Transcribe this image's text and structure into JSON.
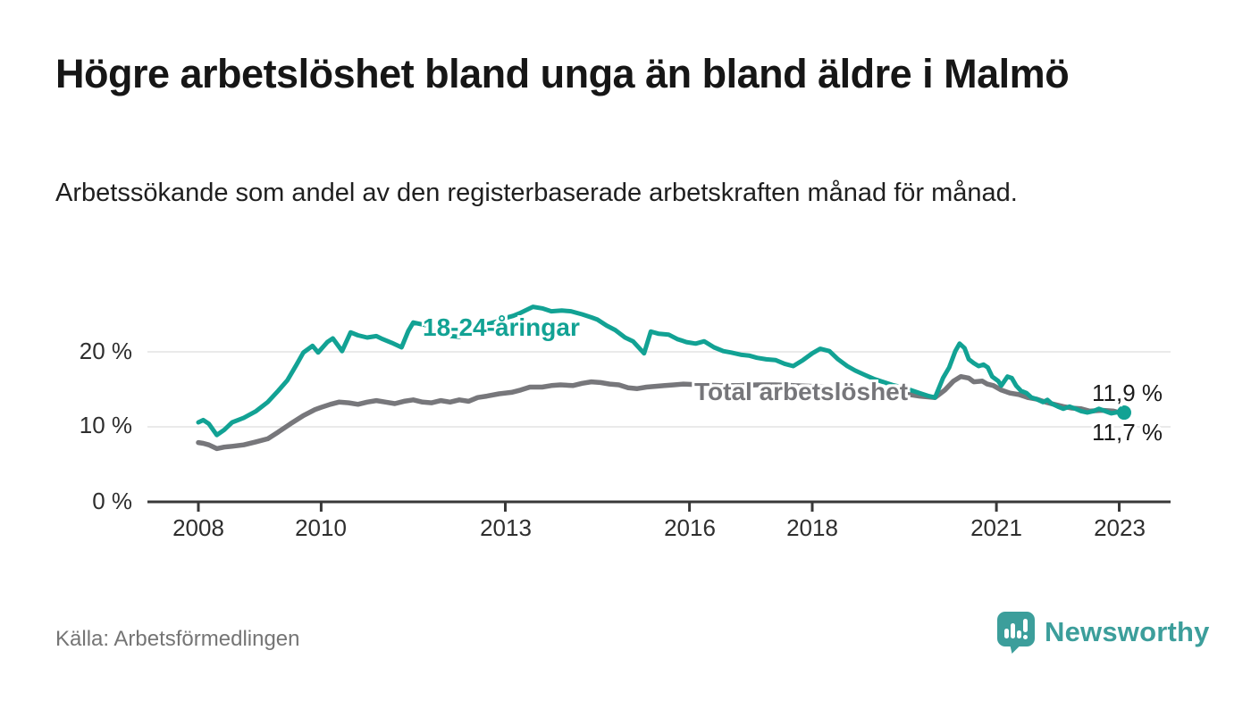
{
  "header": {
    "title": "Högre arbetslöshet bland unga än bland äldre i Malmö",
    "subtitle": "Arbetssökande som andel av den registerbaserade arbetskraften månad för månad."
  },
  "footer": {
    "source": "Källa: Arbetsförmedlingen",
    "logo_text": "Newsworthy"
  },
  "colors": {
    "youth_line": "#12a294",
    "total_line": "#77777b",
    "gridline": "#e3e3e3",
    "axis": "#383838",
    "logo": "#3c9e9b"
  },
  "chart_data": {
    "type": "line",
    "title": "Högre arbetslöshet bland unga än bland äldre i Malmö",
    "subtitle": "Arbetssökande som andel av den registerbaserade arbetskraften månad för månad.",
    "source": "Källa: Arbetsförmedlingen",
    "legend_position": "inline-labels-on-lines",
    "x_axis": {
      "min": 2007.17,
      "max": 2023.45,
      "ticks": [
        2008,
        2010,
        2013,
        2016,
        2018,
        2021,
        2023
      ],
      "tick_labels": [
        "2008",
        "2010",
        "2013",
        "2016",
        "2018",
        "2021",
        "2023"
      ]
    },
    "y_axis": {
      "min": 0,
      "max": 26.5,
      "unit": "%",
      "grid": true,
      "ticks": [
        0,
        10,
        20
      ],
      "tick_labels": [
        "0 %",
        "10 %",
        "20 %"
      ]
    },
    "series": [
      {
        "name": "18-24-åringar",
        "color": "#12a294",
        "end_label": "11,9 %",
        "end_value": 11.9,
        "end_dot": true,
        "points": [
          [
            2008.0,
            10.6
          ],
          [
            2008.08,
            10.9
          ],
          [
            2008.17,
            10.4
          ],
          [
            2008.3,
            8.9
          ],
          [
            2008.42,
            9.6
          ],
          [
            2008.55,
            10.6
          ],
          [
            2008.74,
            11.2
          ],
          [
            2008.94,
            12.1
          ],
          [
            2009.13,
            13.3
          ],
          [
            2009.3,
            14.8
          ],
          [
            2009.45,
            16.2
          ],
          [
            2009.6,
            18.3
          ],
          [
            2009.71,
            19.9
          ],
          [
            2009.86,
            20.8
          ],
          [
            2009.95,
            19.9
          ],
          [
            2010.1,
            21.3
          ],
          [
            2010.19,
            21.8
          ],
          [
            2010.34,
            20.1
          ],
          [
            2010.48,
            22.6
          ],
          [
            2010.6,
            22.2
          ],
          [
            2010.75,
            21.9
          ],
          [
            2010.9,
            22.1
          ],
          [
            2011.0,
            21.7
          ],
          [
            2011.15,
            21.2
          ],
          [
            2011.31,
            20.6
          ],
          [
            2011.42,
            22.8
          ],
          [
            2011.5,
            23.9
          ],
          [
            2011.62,
            23.7
          ],
          [
            2011.74,
            23.5
          ],
          [
            2011.88,
            22.8
          ],
          [
            2012.0,
            22.3
          ],
          [
            2012.12,
            22.1
          ],
          [
            2012.25,
            22.0
          ],
          [
            2012.37,
            22.4
          ],
          [
            2012.5,
            23.0
          ],
          [
            2012.63,
            23.4
          ],
          [
            2012.75,
            23.8
          ],
          [
            2012.88,
            24.1
          ],
          [
            2013.0,
            24.5
          ],
          [
            2013.13,
            24.8
          ],
          [
            2013.25,
            25.2
          ],
          [
            2013.45,
            26.0
          ],
          [
            2013.6,
            25.8
          ],
          [
            2013.75,
            25.4
          ],
          [
            2013.92,
            25.5
          ],
          [
            2014.07,
            25.4
          ],
          [
            2014.25,
            25.0
          ],
          [
            2014.4,
            24.6
          ],
          [
            2014.5,
            24.3
          ],
          [
            2014.65,
            23.5
          ],
          [
            2014.79,
            22.9
          ],
          [
            2014.95,
            21.9
          ],
          [
            2015.08,
            21.4
          ],
          [
            2015.26,
            19.8
          ],
          [
            2015.37,
            22.7
          ],
          [
            2015.5,
            22.4
          ],
          [
            2015.66,
            22.3
          ],
          [
            2015.8,
            21.7
          ],
          [
            2015.95,
            21.3
          ],
          [
            2016.1,
            21.1
          ],
          [
            2016.24,
            21.4
          ],
          [
            2016.4,
            20.6
          ],
          [
            2016.55,
            20.1
          ],
          [
            2016.68,
            19.9
          ],
          [
            2016.85,
            19.6
          ],
          [
            2016.97,
            19.5
          ],
          [
            2017.1,
            19.2
          ],
          [
            2017.25,
            19.0
          ],
          [
            2017.4,
            18.9
          ],
          [
            2017.55,
            18.4
          ],
          [
            2017.69,
            18.1
          ],
          [
            2017.85,
            18.9
          ],
          [
            2018.0,
            19.8
          ],
          [
            2018.13,
            20.4
          ],
          [
            2018.28,
            20.1
          ],
          [
            2018.42,
            19.0
          ],
          [
            2018.57,
            18.1
          ],
          [
            2018.7,
            17.5
          ],
          [
            2018.86,
            16.9
          ],
          [
            2019.0,
            16.4
          ],
          [
            2019.15,
            16.0
          ],
          [
            2019.3,
            15.6
          ],
          [
            2019.45,
            15.3
          ],
          [
            2019.6,
            14.9
          ],
          [
            2019.75,
            14.5
          ],
          [
            2019.9,
            14.1
          ],
          [
            2020.0,
            13.9
          ],
          [
            2020.13,
            16.5
          ],
          [
            2020.23,
            17.9
          ],
          [
            2020.33,
            20.1
          ],
          [
            2020.4,
            21.1
          ],
          [
            2020.48,
            20.5
          ],
          [
            2020.55,
            19.0
          ],
          [
            2020.63,
            18.5
          ],
          [
            2020.71,
            18.1
          ],
          [
            2020.79,
            18.3
          ],
          [
            2020.86,
            17.9
          ],
          [
            2020.93,
            16.7
          ],
          [
            2021.03,
            16.1
          ],
          [
            2021.08,
            15.5
          ],
          [
            2021.18,
            16.7
          ],
          [
            2021.25,
            16.5
          ],
          [
            2021.32,
            15.5
          ],
          [
            2021.4,
            14.8
          ],
          [
            2021.49,
            14.5
          ],
          [
            2021.57,
            13.9
          ],
          [
            2021.65,
            13.7
          ],
          [
            2021.76,
            13.3
          ],
          [
            2021.83,
            13.6
          ],
          [
            2021.9,
            13.1
          ],
          [
            2022.0,
            12.7
          ],
          [
            2022.09,
            12.4
          ],
          [
            2022.19,
            12.7
          ],
          [
            2022.29,
            12.4
          ],
          [
            2022.38,
            12.1
          ],
          [
            2022.48,
            11.9
          ],
          [
            2022.58,
            12.1
          ],
          [
            2022.67,
            12.4
          ],
          [
            2022.77,
            12.1
          ],
          [
            2022.87,
            11.8
          ],
          [
            2023.0,
            12.0
          ],
          [
            2023.08,
            11.9
          ]
        ]
      },
      {
        "name": "Total arbetslöshet",
        "color": "#77777b",
        "end_label": "11,7 %",
        "end_value": 11.7,
        "end_dot": false,
        "points": [
          [
            2008.0,
            7.9
          ],
          [
            2008.08,
            7.8
          ],
          [
            2008.17,
            7.6
          ],
          [
            2008.3,
            7.1
          ],
          [
            2008.42,
            7.3
          ],
          [
            2008.55,
            7.4
          ],
          [
            2008.74,
            7.6
          ],
          [
            2008.94,
            8.0
          ],
          [
            2009.13,
            8.4
          ],
          [
            2009.3,
            9.3
          ],
          [
            2009.5,
            10.4
          ],
          [
            2009.71,
            11.5
          ],
          [
            2009.9,
            12.3
          ],
          [
            2010.0,
            12.6
          ],
          [
            2010.15,
            13.0
          ],
          [
            2010.29,
            13.3
          ],
          [
            2010.45,
            13.2
          ],
          [
            2010.6,
            13.0
          ],
          [
            2010.75,
            13.3
          ],
          [
            2010.9,
            13.5
          ],
          [
            2011.05,
            13.3
          ],
          [
            2011.2,
            13.1
          ],
          [
            2011.35,
            13.4
          ],
          [
            2011.5,
            13.6
          ],
          [
            2011.65,
            13.3
          ],
          [
            2011.8,
            13.2
          ],
          [
            2011.95,
            13.5
          ],
          [
            2012.1,
            13.3
          ],
          [
            2012.25,
            13.6
          ],
          [
            2012.4,
            13.4
          ],
          [
            2012.55,
            13.9
          ],
          [
            2012.7,
            14.1
          ],
          [
            2012.9,
            14.4
          ],
          [
            2013.1,
            14.6
          ],
          [
            2013.25,
            14.9
          ],
          [
            2013.4,
            15.3
          ],
          [
            2013.6,
            15.3
          ],
          [
            2013.75,
            15.5
          ],
          [
            2013.9,
            15.6
          ],
          [
            2014.1,
            15.5
          ],
          [
            2014.25,
            15.8
          ],
          [
            2014.4,
            16.0
          ],
          [
            2014.55,
            15.9
          ],
          [
            2014.7,
            15.7
          ],
          [
            2014.85,
            15.6
          ],
          [
            2015.0,
            15.2
          ],
          [
            2015.15,
            15.1
          ],
          [
            2015.3,
            15.3
          ],
          [
            2015.45,
            15.4
          ],
          [
            2015.6,
            15.5
          ],
          [
            2015.75,
            15.6
          ],
          [
            2015.9,
            15.7
          ],
          [
            2016.2,
            15.6
          ],
          [
            2016.5,
            15.5
          ],
          [
            2016.8,
            15.5
          ],
          [
            2017.1,
            15.6
          ],
          [
            2017.4,
            15.6
          ],
          [
            2017.7,
            15.5
          ],
          [
            2018.0,
            15.4
          ],
          [
            2018.3,
            15.3
          ],
          [
            2018.6,
            15.1
          ],
          [
            2018.9,
            14.9
          ],
          [
            2019.2,
            14.7
          ],
          [
            2019.5,
            14.4
          ],
          [
            2019.75,
            14.1
          ],
          [
            2020.0,
            13.9
          ],
          [
            2020.16,
            14.9
          ],
          [
            2020.3,
            16.1
          ],
          [
            2020.42,
            16.7
          ],
          [
            2020.55,
            16.5
          ],
          [
            2020.63,
            16.0
          ],
          [
            2020.77,
            16.1
          ],
          [
            2020.85,
            15.7
          ],
          [
            2020.95,
            15.5
          ],
          [
            2021.08,
            14.9
          ],
          [
            2021.22,
            14.5
          ],
          [
            2021.37,
            14.3
          ],
          [
            2021.51,
            13.9
          ],
          [
            2021.65,
            13.7
          ],
          [
            2021.8,
            13.3
          ],
          [
            2021.94,
            13.0
          ],
          [
            2022.09,
            12.7
          ],
          [
            2022.23,
            12.5
          ],
          [
            2022.38,
            12.4
          ],
          [
            2022.52,
            12.1
          ],
          [
            2022.72,
            12.2
          ],
          [
            2022.91,
            12.1
          ],
          [
            2023.0,
            11.9
          ],
          [
            2023.08,
            11.7
          ]
        ]
      }
    ]
  }
}
